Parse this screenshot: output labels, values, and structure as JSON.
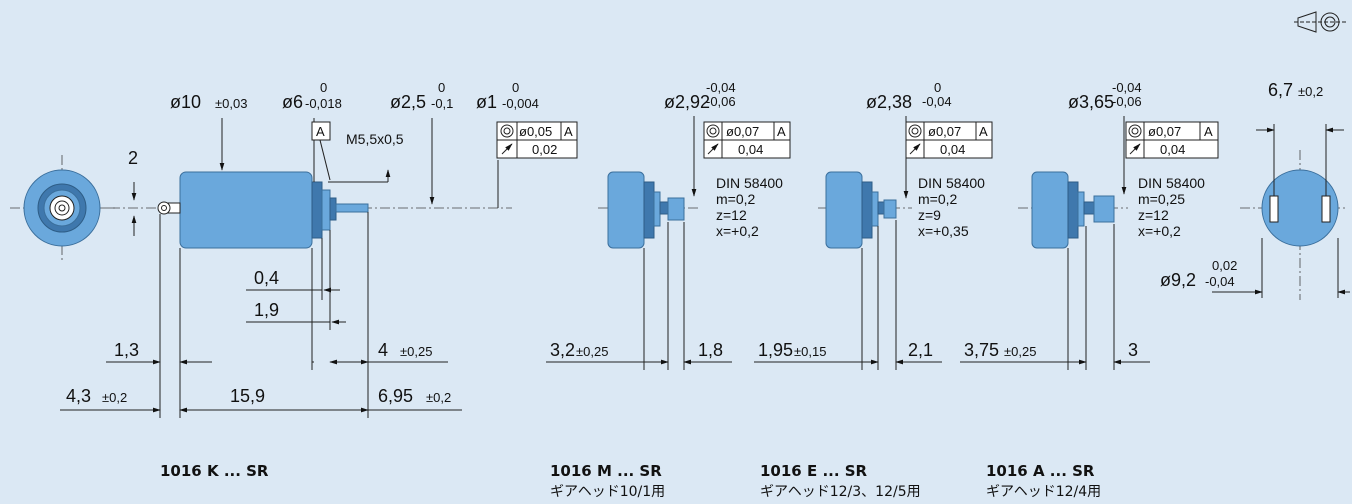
{
  "projection_symbol": "projection-method-icon",
  "colors": {
    "background": "#dbe8f4",
    "motor": "#6aa8dc",
    "motor_dark": "#3f78ad"
  },
  "main_view": {
    "d_body": "ø10",
    "d_body_tol": "±0,03",
    "d_pilot": "ø6",
    "d_pilot_tol_up": "0",
    "d_pilot_tol_lo": "-0,018",
    "d_boss": "ø2,5",
    "d_boss_tol_up": "0",
    "d_boss_tol_lo": "-0,1",
    "d_shaft": "ø1",
    "d_shaft_tol_up": "0",
    "d_shaft_tol_lo": "-0,004",
    "datum": "A",
    "thread": "M5,5x0,5",
    "tol_concentric": "ø0,05",
    "tol_concentric_ref": "A",
    "tol_runout": "0,02",
    "term_height": "2",
    "dim_0_4": "0,4",
    "dim_1_9": "1,9",
    "dim_1_3": "1,3",
    "dim_4": "4",
    "dim_4_tol": "±0,25",
    "dim_4_3": "4,3",
    "dim_4_3_tol": "±0,2",
    "dim_15_9": "15,9",
    "dim_6_95": "6,95",
    "dim_6_95_tol": "±0,2"
  },
  "gears": [
    {
      "d": "ø2,92",
      "tol_up": "-0,04",
      "tol_lo": "-0,06",
      "tol_concentric": "ø0,07",
      "tol_ref": "A",
      "tol_runout": "0,04",
      "std": "DIN 58400",
      "m": "m=0,2",
      "z": "z=12",
      "x": "x=+0,2",
      "len_a": "3,2",
      "len_a_tol": "±0,25",
      "len_b": "1,8"
    },
    {
      "d": "ø2,38",
      "tol_up": "0",
      "tol_lo": "-0,04",
      "tol_concentric": "ø0,07",
      "tol_ref": "A",
      "tol_runout": "0,04",
      "std": "DIN 58400",
      "m": "m=0,2",
      "z": "z=9",
      "x": "x=+0,35",
      "len_a": "1,95",
      "len_a_tol": "±0,15",
      "len_b": "2,1"
    },
    {
      "d": "ø3,65",
      "tol_up": "-0,04",
      "tol_lo": "-0,06",
      "tol_concentric": "ø0,07",
      "tol_ref": "A",
      "tol_runout": "0,04",
      "std": "DIN 58400",
      "m": "m=0,25",
      "z": "z=12",
      "x": "x=+0,2",
      "len_a": "3,75",
      "len_a_tol": "±0,25",
      "len_b": "3"
    }
  ],
  "rear_view": {
    "width": "6,7",
    "width_tol": "±0,2",
    "dia": "ø9,2",
    "dia_tol_up": "0,02",
    "dia_tol_lo": "-0,04"
  },
  "captions": [
    {
      "title": "1016 K ... SR",
      "subtitle": ""
    },
    {
      "title": "1016 M ... SR",
      "subtitle": "ギアヘッド10/1用"
    },
    {
      "title": "1016 E ... SR",
      "subtitle": "ギアヘッド12/3、12/5用"
    },
    {
      "title": "1016 A ... SR",
      "subtitle": "ギアヘッド12/4用"
    }
  ]
}
